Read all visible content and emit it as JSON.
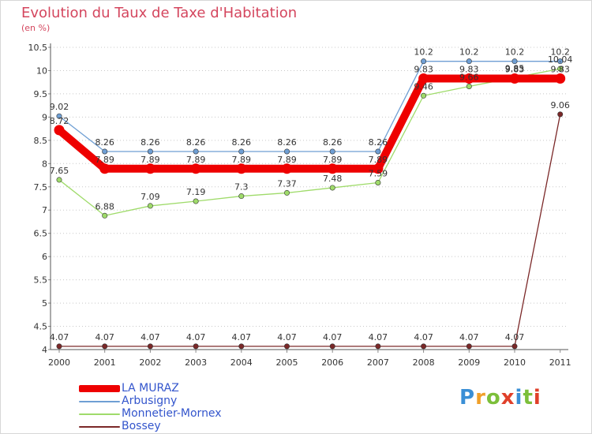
{
  "chart_data": {
    "type": "line",
    "title": "Evolution du Taux de Taxe d'Habitation",
    "ylabel": "(en %)",
    "xlabel": "",
    "categories": [
      "2000",
      "2001",
      "2002",
      "2003",
      "2004",
      "2005",
      "2006",
      "2007",
      "2008",
      "2009",
      "2010",
      "2011"
    ],
    "y_ticks": [
      "4",
      "4.5",
      "5",
      "5.5",
      "6",
      "6.5",
      "7",
      "7.5",
      "8",
      "8.5",
      "9",
      "9.5",
      "10",
      "10.5"
    ],
    "ylim": [
      4,
      10.5
    ],
    "grid": "horizontal dotted",
    "legend_position": "bottom-left",
    "series": [
      {
        "name": "Bossey",
        "color": "#7b2828",
        "values": [
          4.07,
          4.07,
          4.07,
          4.07,
          4.07,
          4.07,
          4.07,
          4.07,
          4.07,
          4.07,
          4.07,
          9.06
        ],
        "labels": [
          "4.07",
          "4.07",
          "4.07",
          "4.07",
          "4.07",
          "4.07",
          "4.07",
          "4.07",
          "4.07",
          "4.07",
          "4.07",
          "9.06"
        ]
      },
      {
        "name": "Arbusigny",
        "color": "#6f9fd4",
        "values": [
          9.02,
          8.26,
          8.26,
          8.26,
          8.26,
          8.26,
          8.26,
          8.26,
          10.2,
          10.2,
          10.2,
          10.2
        ],
        "labels": [
          "9.02",
          "8.26",
          "8.26",
          "8.26",
          "8.26",
          "8.26",
          "8.26",
          "8.26",
          "10.2",
          "10.2",
          "10.2",
          "10.2"
        ]
      },
      {
        "name": "Monnetier-Mornex",
        "color": "#9fdb6a",
        "values": [
          7.65,
          6.88,
          7.09,
          7.19,
          7.3,
          7.37,
          7.48,
          7.59,
          9.46,
          9.66,
          9.85,
          10.04
        ],
        "labels": [
          "7.65",
          "6.88",
          "7.09",
          "7.19",
          "7.3",
          "7.37",
          "7.48",
          "7.59",
          "9.46",
          "9.66",
          "9.85",
          "10.04"
        ]
      },
      {
        "name": "LA MURAZ",
        "color": "#ee0000",
        "values": [
          8.72,
          7.89,
          7.89,
          7.89,
          7.89,
          7.89,
          7.89,
          7.89,
          9.83,
          9.83,
          9.83,
          9.83
        ],
        "labels": [
          "8.72",
          "7.89",
          "7.89",
          "7.89",
          "7.89",
          "7.89",
          "7.89",
          "7.89",
          "9.83",
          "9.83",
          "9.83",
          "9.83"
        ]
      }
    ],
    "legend": [
      {
        "name": "LA MURAZ",
        "color": "#ee0000",
        "style": "thick"
      },
      {
        "name": "Arbusigny",
        "color": "#6f9fd4",
        "style": "thin"
      },
      {
        "name": "Monnetier-Mornex",
        "color": "#9fdb6a",
        "style": "thin"
      },
      {
        "name": "Bossey",
        "color": "#7b2828",
        "style": "thin"
      }
    ]
  },
  "brand": {
    "letters": [
      "P",
      "r",
      "o",
      "x",
      "i",
      "t",
      "i"
    ],
    "colors": [
      "#3a8fd6",
      "#f0a02a",
      "#7cbf3a",
      "#e0402a",
      "#3a8fd6",
      "#7cbf3a",
      "#e0402a"
    ]
  }
}
